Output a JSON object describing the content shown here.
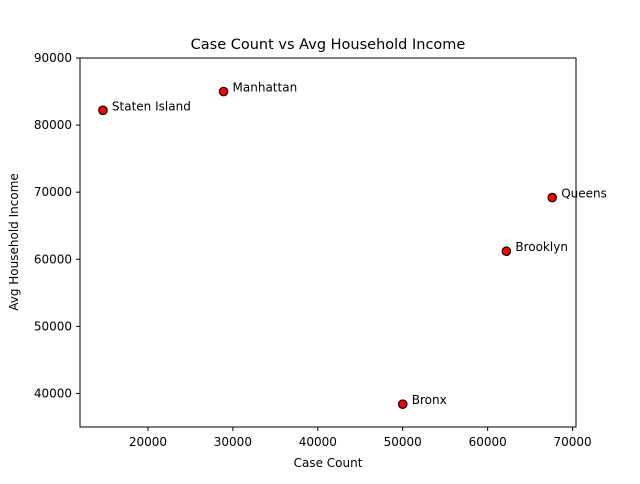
{
  "chart_data": {
    "type": "scatter",
    "title": "Case Count vs Avg Household Income",
    "xlabel": "Case Count",
    "ylabel": "Avg Household Income",
    "xlim": [
      12000,
      70400
    ],
    "ylim": [
      35000,
      90000
    ],
    "xticks": [
      20000,
      30000,
      40000,
      50000,
      60000,
      70000
    ],
    "yticks": [
      40000,
      50000,
      60000,
      70000,
      80000,
      90000
    ],
    "grid": false,
    "legend": "none",
    "marker_color": "#ff0000",
    "marker_edge_color": "#000000",
    "points": [
      {
        "label": "Staten Island",
        "x": 14700,
        "y": 82200
      },
      {
        "label": "Manhattan",
        "x": 28900,
        "y": 85000
      },
      {
        "label": "Queens",
        "x": 67600,
        "y": 69200
      },
      {
        "label": "Brooklyn",
        "x": 62200,
        "y": 61200
      },
      {
        "label": "Bronx",
        "x": 50000,
        "y": 38400
      }
    ]
  }
}
